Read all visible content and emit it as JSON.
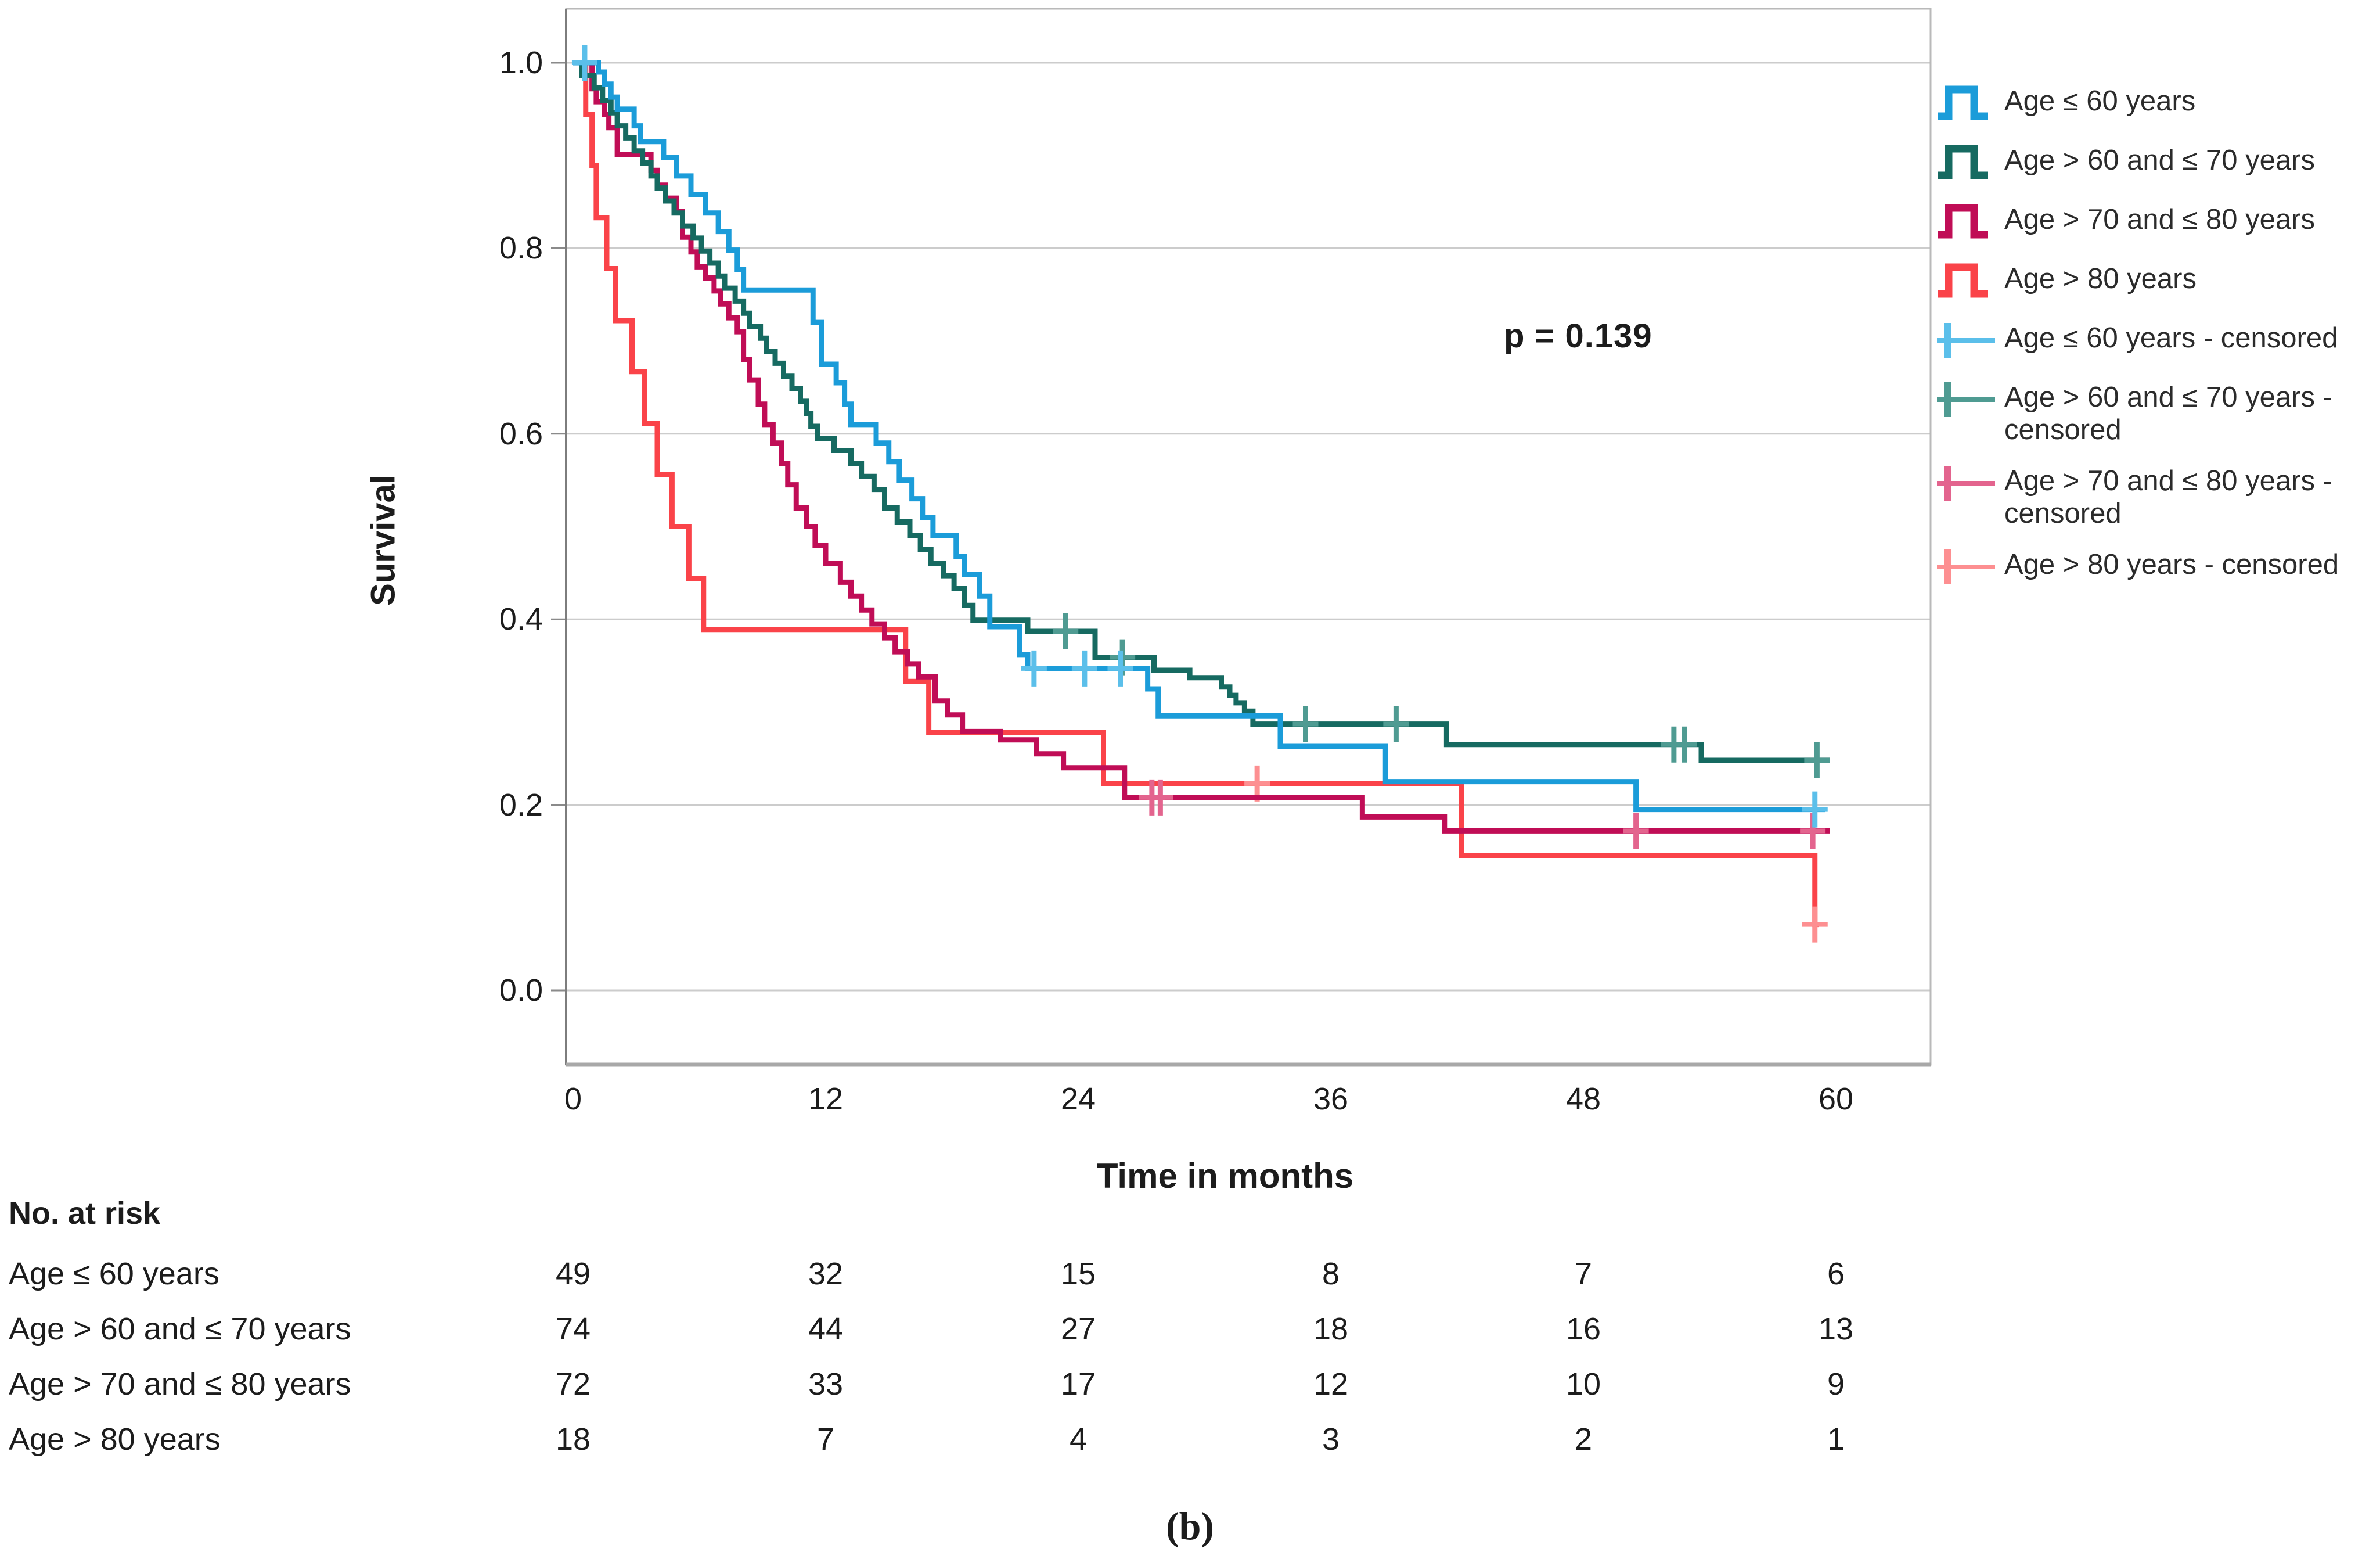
{
  "figure": {
    "caption": "(b)"
  },
  "chart_data": {
    "type": "line",
    "subtype": "kaplan-meier-step",
    "title": "",
    "xlabel": "Time in months",
    "ylabel": "Survival",
    "annotation": "p = 0.139",
    "xlim": [
      0,
      60
    ],
    "ylim": [
      0.0,
      1.0
    ],
    "x_ticks": [
      0,
      12,
      24,
      36,
      48,
      60
    ],
    "y_ticks": [
      1.0,
      0.8,
      0.6,
      0.4,
      0.2,
      0.0
    ],
    "y_tick_labels": [
      "1.0",
      "0.8",
      "0.6",
      "0.4",
      "0.2",
      "0.0"
    ],
    "grid": "horizontal",
    "legend_position": "right",
    "series": [
      {
        "id": "age-le-60",
        "name": "Age ≤ 60 years",
        "color": "#1B9CD9",
        "censor_color": "#5BBFEA",
        "end_t": 59.5,
        "steps": [
          [
            0,
            1.0
          ],
          [
            1.2,
            0.99
          ],
          [
            1.5,
            0.977
          ],
          [
            1.8,
            0.963
          ],
          [
            2.1,
            0.95
          ],
          [
            2.9,
            0.932
          ],
          [
            3.2,
            0.915
          ],
          [
            4.3,
            0.898
          ],
          [
            4.9,
            0.878
          ],
          [
            5.6,
            0.858
          ],
          [
            6.3,
            0.838
          ],
          [
            6.9,
            0.818
          ],
          [
            7.4,
            0.798
          ],
          [
            7.8,
            0.777
          ],
          [
            8.1,
            0.755
          ],
          [
            11.4,
            0.72
          ],
          [
            11.8,
            0.675
          ],
          [
            12.5,
            0.655
          ],
          [
            12.9,
            0.632
          ],
          [
            13.2,
            0.61
          ],
          [
            14.4,
            0.59
          ],
          [
            15.0,
            0.57
          ],
          [
            15.5,
            0.55
          ],
          [
            16.1,
            0.53
          ],
          [
            16.6,
            0.51
          ],
          [
            17.1,
            0.49
          ],
          [
            18.2,
            0.468
          ],
          [
            18.6,
            0.448
          ],
          [
            19.3,
            0.425
          ],
          [
            19.8,
            0.392
          ],
          [
            21.2,
            0.362
          ],
          [
            21.6,
            0.347
          ],
          [
            27.3,
            0.325
          ],
          [
            27.8,
            0.296
          ],
          [
            33.6,
            0.263
          ],
          [
            38.6,
            0.225
          ],
          [
            50.5,
            0.195
          ]
        ],
        "censors": [
          [
            0.55,
            1.0
          ],
          [
            21.9,
            0.347
          ],
          [
            24.3,
            0.347
          ],
          [
            26.0,
            0.347
          ],
          [
            59.0,
            0.195
          ]
        ]
      },
      {
        "id": "age-60-70",
        "name": "Age > 60 and ≤ 70 years",
        "color": "#166A61",
        "censor_color": "#4F9B92",
        "end_t": 59.7,
        "steps": [
          [
            0,
            1.0
          ],
          [
            0.4,
            0.986
          ],
          [
            1.0,
            0.973
          ],
          [
            1.4,
            0.959
          ],
          [
            1.8,
            0.946
          ],
          [
            2.1,
            0.932
          ],
          [
            2.5,
            0.919
          ],
          [
            2.9,
            0.905
          ],
          [
            3.3,
            0.892
          ],
          [
            3.7,
            0.878
          ],
          [
            4.0,
            0.865
          ],
          [
            4.4,
            0.851
          ],
          [
            4.8,
            0.838
          ],
          [
            5.2,
            0.824
          ],
          [
            5.7,
            0.811
          ],
          [
            6.1,
            0.797
          ],
          [
            6.5,
            0.784
          ],
          [
            6.9,
            0.77
          ],
          [
            7.2,
            0.757
          ],
          [
            7.7,
            0.743
          ],
          [
            8.1,
            0.73
          ],
          [
            8.4,
            0.716
          ],
          [
            8.9,
            0.703
          ],
          [
            9.2,
            0.689
          ],
          [
            9.6,
            0.676
          ],
          [
            10.0,
            0.662
          ],
          [
            10.4,
            0.649
          ],
          [
            10.8,
            0.635
          ],
          [
            11.1,
            0.622
          ],
          [
            11.3,
            0.608
          ],
          [
            11.6,
            0.595
          ],
          [
            12.4,
            0.582
          ],
          [
            13.2,
            0.568
          ],
          [
            13.7,
            0.554
          ],
          [
            14.3,
            0.54
          ],
          [
            14.8,
            0.52
          ],
          [
            15.4,
            0.505
          ],
          [
            16.0,
            0.49
          ],
          [
            16.5,
            0.475
          ],
          [
            17.0,
            0.46
          ],
          [
            17.6,
            0.447
          ],
          [
            18.1,
            0.433
          ],
          [
            18.6,
            0.415
          ],
          [
            19.0,
            0.399
          ],
          [
            21.6,
            0.387
          ],
          [
            24.8,
            0.359
          ],
          [
            27.6,
            0.345
          ],
          [
            29.3,
            0.337
          ],
          [
            30.8,
            0.327
          ],
          [
            31.2,
            0.318
          ],
          [
            31.5,
            0.31
          ],
          [
            31.9,
            0.301
          ],
          [
            32.3,
            0.287
          ],
          [
            41.5,
            0.265
          ],
          [
            53.6,
            0.248
          ]
        ],
        "censors": [
          [
            23.4,
            0.387
          ],
          [
            26.1,
            0.359
          ],
          [
            34.8,
            0.287
          ],
          [
            39.1,
            0.287
          ],
          [
            52.3,
            0.265
          ],
          [
            52.8,
            0.265
          ],
          [
            59.1,
            0.248
          ]
        ]
      },
      {
        "id": "age-70-80",
        "name": "Age > 70 and ≤ 80 years",
        "color": "#C00D56",
        "censor_color": "#E3648E",
        "end_t": 59.7,
        "steps": [
          [
            0,
            1.0
          ],
          [
            0.9,
            0.972
          ],
          [
            1.1,
            0.958
          ],
          [
            1.5,
            0.944
          ],
          [
            1.7,
            0.93
          ],
          [
            2.1,
            0.901
          ],
          [
            3.7,
            0.884
          ],
          [
            4.0,
            0.868
          ],
          [
            4.4,
            0.854
          ],
          [
            4.9,
            0.84
          ],
          [
            5.2,
            0.812
          ],
          [
            5.6,
            0.796
          ],
          [
            5.9,
            0.78
          ],
          [
            6.3,
            0.768
          ],
          [
            6.7,
            0.754
          ],
          [
            7.0,
            0.74
          ],
          [
            7.4,
            0.725
          ],
          [
            7.8,
            0.71
          ],
          [
            8.1,
            0.68
          ],
          [
            8.4,
            0.658
          ],
          [
            8.8,
            0.632
          ],
          [
            9.1,
            0.61
          ],
          [
            9.5,
            0.59
          ],
          [
            9.9,
            0.568
          ],
          [
            10.2,
            0.545
          ],
          [
            10.6,
            0.52
          ],
          [
            11.1,
            0.5
          ],
          [
            11.5,
            0.48
          ],
          [
            12.0,
            0.46
          ],
          [
            12.7,
            0.44
          ],
          [
            13.2,
            0.425
          ],
          [
            13.7,
            0.41
          ],
          [
            14.2,
            0.395
          ],
          [
            14.8,
            0.38
          ],
          [
            15.3,
            0.365
          ],
          [
            15.9,
            0.352
          ],
          [
            16.4,
            0.338
          ],
          [
            17.2,
            0.312
          ],
          [
            17.8,
            0.297
          ],
          [
            18.5,
            0.279
          ],
          [
            20.3,
            0.27
          ],
          [
            22.0,
            0.255
          ],
          [
            23.3,
            0.24
          ],
          [
            26.2,
            0.208
          ],
          [
            37.5,
            0.187
          ],
          [
            41.4,
            0.172
          ]
        ],
        "censors": [
          [
            27.5,
            0.208
          ],
          [
            27.9,
            0.208
          ],
          [
            50.5,
            0.172
          ],
          [
            58.9,
            0.172
          ]
        ]
      },
      {
        "id": "age-gt-80",
        "name": "Age > 80 years",
        "color": "#FA4349",
        "censor_color": "#FD8F91",
        "end_t": 59.2,
        "steps": [
          [
            0,
            1.0
          ],
          [
            0.6,
            0.944
          ],
          [
            0.9,
            0.889
          ],
          [
            1.1,
            0.833
          ],
          [
            1.6,
            0.778
          ],
          [
            2.0,
            0.722
          ],
          [
            2.8,
            0.667
          ],
          [
            3.4,
            0.611
          ],
          [
            4.0,
            0.556
          ],
          [
            4.7,
            0.5
          ],
          [
            5.5,
            0.444
          ],
          [
            6.2,
            0.389
          ],
          [
            15.8,
            0.333
          ],
          [
            16.9,
            0.278
          ],
          [
            25.2,
            0.223
          ],
          [
            42.2,
            0.145
          ],
          [
            59.0,
            0.071
          ]
        ],
        "censors": [
          [
            32.5,
            0.223
          ],
          [
            59.0,
            0.071
          ]
        ]
      }
    ],
    "legend": [
      {
        "label": "Age ≤ 60 years",
        "swatch": "solid",
        "color": "#1B9CD9"
      },
      {
        "label": "Age > 60 and ≤ 70 years",
        "swatch": "solid",
        "color": "#166A61"
      },
      {
        "label": "Age > 70 and ≤ 80 years",
        "swatch": "solid",
        "color": "#C00D56"
      },
      {
        "label": "Age > 80 years",
        "swatch": "solid",
        "color": "#FA4349"
      },
      {
        "label": "Age ≤ 60 years - censored",
        "swatch": "censored",
        "color": "#5BBFEA"
      },
      {
        "label": "Age > 60 and ≤ 70 years - censored",
        "swatch": "censored",
        "color": "#4F9B92"
      },
      {
        "label": "Age > 70 and ≤ 80 years - censored",
        "swatch": "censored",
        "color": "#E3648E"
      },
      {
        "label": "Age > 80 years - censored",
        "swatch": "censored",
        "color": "#FD8F91"
      }
    ]
  },
  "risk_table": {
    "title": "No. at risk",
    "time_points": [
      0,
      12,
      24,
      36,
      48,
      60
    ],
    "rows": [
      {
        "label": "Age ≤ 60 years",
        "values": [
          "49",
          "32",
          "15",
          "8",
          "7",
          "6"
        ]
      },
      {
        "label": "Age > 60 and ≤ 70 years",
        "values": [
          "74",
          "44",
          "27",
          "18",
          "16",
          "13"
        ]
      },
      {
        "label": "Age > 70 and ≤ 80 years",
        "values": [
          "72",
          "33",
          "17",
          "12",
          "10",
          "9"
        ]
      },
      {
        "label": "Age > 80 years",
        "values": [
          "18",
          "7",
          "4",
          "3",
          "2",
          "1"
        ]
      }
    ]
  }
}
